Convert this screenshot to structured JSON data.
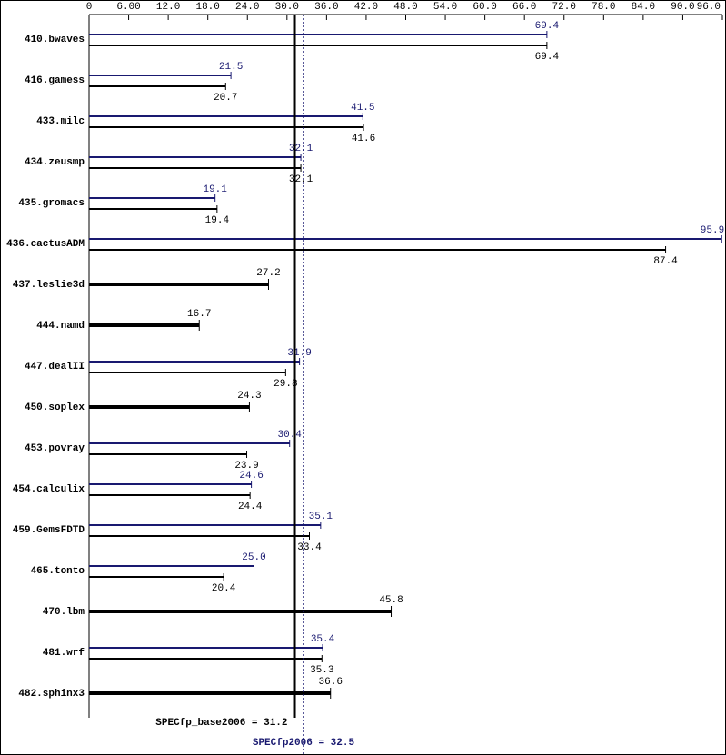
{
  "chart_data": {
    "type": "hbar-range",
    "categories": [
      "410.bwaves",
      "416.gamess",
      "433.milc",
      "434.zeusmp",
      "435.gromacs",
      "436.cactusADM",
      "437.leslie3d",
      "444.namd",
      "447.dealII",
      "450.soplex",
      "453.povray",
      "454.calculix",
      "459.GemsFDTD",
      "465.tonto",
      "470.lbm",
      "481.wrf",
      "482.sphinx3"
    ],
    "series": [
      {
        "color": "#191970",
        "values": [
          69.4,
          21.5,
          41.5,
          32.1,
          19.1,
          95.9,
          null,
          null,
          31.9,
          null,
          30.4,
          24.6,
          35.1,
          25.0,
          null,
          35.4,
          null
        ],
        "value_labels": [
          "69.4",
          "21.5",
          "41.5",
          "32.1",
          "19.1",
          "95.9",
          null,
          null,
          "31.9",
          null,
          "30.4",
          "24.6",
          "35.1",
          "25.0",
          null,
          "35.4",
          null
        ]
      },
      {
        "color": "#000000",
        "values": [
          69.4,
          20.7,
          41.6,
          32.1,
          19.4,
          87.4,
          27.2,
          16.7,
          29.8,
          24.3,
          23.9,
          24.4,
          33.4,
          20.4,
          45.8,
          35.3,
          36.6
        ],
        "value_labels": [
          "69.4",
          "20.7",
          "41.6",
          "32.1",
          "19.4",
          "87.4",
          "27.2",
          "16.7",
          "29.8",
          "24.3",
          "23.9",
          "24.4",
          "33.4",
          "20.4",
          "45.8",
          "35.3",
          "36.6"
        ]
      }
    ],
    "reference_lines": [
      {
        "label": "SPECfp_base2006 = 31.2",
        "value": 31.2,
        "color": "#000000",
        "style": "solid"
      },
      {
        "label": "SPECfp2006 = 32.5",
        "value": 32.5,
        "color": "#191970",
        "style": "dotted"
      }
    ],
    "xlim": [
      0,
      96
    ],
    "xticks": [
      0,
      {
        "value": 6,
        "label": "6.00"
      },
      {
        "value": 12,
        "label": "12.0"
      },
      {
        "value": 18,
        "label": "18.0"
      },
      {
        "value": 24,
        "label": "24.0"
      },
      {
        "value": 30,
        "label": "30.0"
      },
      {
        "value": 36,
        "label": "36.0"
      },
      {
        "value": 42,
        "label": "42.0"
      },
      {
        "value": 48,
        "label": "48.0"
      },
      {
        "value": 54,
        "label": "54.0"
      },
      {
        "value": 60,
        "label": "60.0"
      },
      {
        "value": 66,
        "label": "66.0"
      },
      {
        "value": 72,
        "label": "72.0"
      },
      {
        "value": 78,
        "label": "78.0"
      },
      {
        "value": 84,
        "label": "84.0"
      },
      {
        "value": 90,
        "label": "90.0"
      },
      {
        "value": 96,
        "label": "96.0"
      }
    ]
  }
}
